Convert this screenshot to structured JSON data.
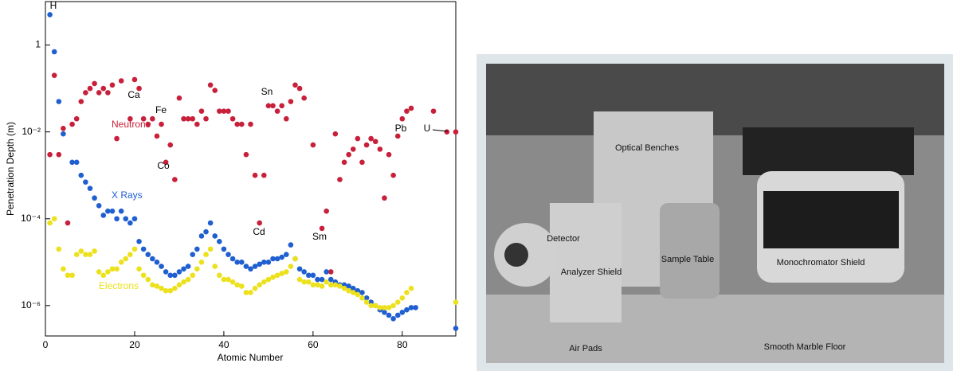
{
  "chart_data": {
    "type": "scatter",
    "ylabel": "Penetration Depth (m)",
    "xlabel": "Atomic Number",
    "log_y": true,
    "xlim": [
      0,
      92
    ],
    "xticks": [
      0,
      20,
      40,
      60,
      80
    ],
    "ylim": [
      2e-07,
      10
    ],
    "yticks": [
      {
        "value": 1e-06,
        "label": "10⁻⁶"
      },
      {
        "value": 0.0001,
        "label": "10⁻⁴"
      },
      {
        "value": 0.01,
        "label": "10⁻²"
      },
      1
    ],
    "annotations": [
      "H",
      "Ca",
      "Fe",
      "Co",
      "Sn",
      "Cd",
      "Sm",
      "Pb",
      "U"
    ],
    "series": [
      {
        "name": "Neutrons",
        "color": "#c8203a",
        "x": [
          1,
          2,
          3,
          4,
          5,
          6,
          7,
          8,
          9,
          10,
          11,
          12,
          13,
          14,
          15,
          16,
          17,
          19,
          20,
          21,
          22,
          23,
          24,
          25,
          26,
          27,
          28,
          29,
          30,
          31,
          32,
          33,
          34,
          35,
          36,
          37,
          38,
          39,
          40,
          41,
          42,
          43,
          44,
          45,
          46,
          47,
          48,
          49,
          50,
          51,
          52,
          53,
          54,
          55,
          56,
          57,
          58,
          60,
          62,
          63,
          64,
          65,
          66,
          67,
          68,
          69,
          70,
          71,
          72,
          73,
          74,
          75,
          76,
          77,
          78,
          79,
          80,
          81,
          82,
          87,
          90,
          92
        ],
        "values": [
          0.003,
          0.2,
          0.003,
          0.012,
          8e-05,
          0.015,
          0.02,
          0.05,
          0.08,
          0.1,
          0.13,
          0.08,
          0.1,
          0.08,
          0.12,
          0.007,
          0.15,
          0.02,
          0.16,
          0.1,
          0.02,
          0.015,
          0.02,
          0.008,
          0.015,
          0.002,
          0.005,
          0.0008,
          0.06,
          0.02,
          0.02,
          0.02,
          0.015,
          0.03,
          0.02,
          0.12,
          0.09,
          0.03,
          0.03,
          0.03,
          0.02,
          0.015,
          0.015,
          0.003,
          0.015,
          0.001,
          8e-05,
          0.001,
          0.04,
          0.04,
          0.03,
          0.04,
          0.02,
          0.05,
          0.12,
          0.1,
          0.06,
          0.005,
          6e-05,
          0.00015,
          6e-06,
          0.009,
          0.0008,
          0.002,
          0.003,
          0.004,
          0.007,
          0.002,
          0.005,
          0.007,
          0.006,
          0.004,
          0.0003,
          0.003,
          0.001,
          0.008,
          0.02,
          0.03,
          0.035,
          0.03,
          0.01,
          0.01
        ]
      },
      {
        "name": "X Rays",
        "color": "#1f5fd0",
        "x": [
          1,
          2,
          3,
          4,
          6,
          7,
          8,
          9,
          10,
          11,
          12,
          13,
          14,
          15,
          16,
          17,
          18,
          19,
          20,
          21,
          22,
          23,
          24,
          25,
          26,
          27,
          28,
          29,
          30,
          31,
          32,
          33,
          34,
          35,
          36,
          37,
          38,
          39,
          40,
          41,
          42,
          43,
          44,
          45,
          46,
          47,
          48,
          49,
          50,
          51,
          52,
          53,
          54,
          55,
          56,
          57,
          58,
          59,
          60,
          61,
          62,
          63,
          64,
          65,
          66,
          67,
          68,
          69,
          70,
          71,
          72,
          73,
          74,
          75,
          76,
          77,
          78,
          79,
          80,
          81,
          82,
          83,
          92
        ],
        "values": [
          5,
          0.7,
          0.05,
          0.009,
          0.002,
          0.002,
          0.001,
          0.0007,
          0.0005,
          0.0003,
          0.0002,
          0.00012,
          0.00015,
          0.00015,
          0.0001,
          0.00015,
          0.0001,
          8e-05,
          0.0001,
          3e-05,
          2e-05,
          1.5e-05,
          1.2e-05,
          1e-05,
          8e-06,
          6e-06,
          5e-06,
          5e-06,
          6e-06,
          7e-06,
          8e-06,
          1.5e-05,
          2e-05,
          4e-05,
          5e-05,
          8e-05,
          4e-05,
          3e-05,
          2e-05,
          1.5e-05,
          1.2e-05,
          1e-05,
          1e-05,
          8e-06,
          7e-06,
          8e-06,
          9e-06,
          1e-05,
          1e-05,
          1.2e-05,
          1.2e-05,
          1.3e-05,
          1.5e-05,
          2.5e-05,
          1.2e-05,
          7e-06,
          6e-06,
          5e-06,
          5e-06,
          4e-06,
          4e-06,
          6e-06,
          4e-06,
          3.5e-06,
          3e-06,
          3e-06,
          2.8e-06,
          2.5e-06,
          2.2e-06,
          2e-06,
          1.5e-06,
          1.2e-06,
          1e-06,
          8e-07,
          7e-07,
          6e-07,
          5e-07,
          6e-07,
          7e-07,
          8e-07,
          9e-07,
          9e-07,
          3e-07
        ]
      },
      {
        "name": "Electrons",
        "color": "#ece11c",
        "x": [
          1,
          2,
          3,
          4,
          5,
          6,
          7,
          8,
          9,
          10,
          11,
          12,
          13,
          14,
          15,
          16,
          17,
          18,
          19,
          20,
          21,
          22,
          23,
          24,
          25,
          26,
          27,
          28,
          29,
          30,
          31,
          32,
          33,
          34,
          35,
          36,
          37,
          38,
          39,
          40,
          41,
          42,
          43,
          44,
          45,
          46,
          47,
          48,
          49,
          50,
          51,
          52,
          53,
          54,
          55,
          56,
          57,
          58,
          59,
          60,
          61,
          62,
          63,
          64,
          65,
          66,
          67,
          68,
          69,
          70,
          71,
          72,
          73,
          74,
          75,
          76,
          77,
          78,
          79,
          80,
          81,
          82,
          92
        ],
        "values": [
          8e-05,
          0.0001,
          2e-05,
          7e-06,
          5e-06,
          5e-06,
          1.5e-05,
          1.8e-05,
          1.5e-05,
          1.5e-05,
          1.8e-05,
          6e-06,
          5e-06,
          6e-06,
          7e-06,
          7e-06,
          1e-05,
          1.2e-05,
          1.5e-05,
          2e-05,
          7e-06,
          5e-06,
          4e-06,
          3e-06,
          2.8e-06,
          2.5e-06,
          2.2e-06,
          2.2e-06,
          2.5e-06,
          3e-06,
          3.5e-06,
          4e-06,
          5e-06,
          7e-06,
          1e-05,
          1.5e-05,
          2e-05,
          8e-06,
          5e-06,
          4e-06,
          4e-06,
          3.5e-06,
          3e-06,
          2.8e-06,
          2e-06,
          2e-06,
          2.5e-06,
          3e-06,
          3.5e-06,
          4e-06,
          4.5e-06,
          5e-06,
          5.5e-06,
          6e-06,
          8e-06,
          1.2e-05,
          4e-06,
          3.5e-06,
          3.5e-06,
          3e-06,
          3e-06,
          2.8e-06,
          3.5e-06,
          3e-06,
          3e-06,
          2.8e-06,
          2.5e-06,
          2.2e-06,
          2e-06,
          1.8e-06,
          1.5e-06,
          1.2e-06,
          1e-06,
          1e-06,
          9e-07,
          9e-07,
          9e-07,
          1e-06,
          1.2e-06,
          1.5e-06,
          2e-06,
          2.5e-06,
          1.2e-06
        ]
      }
    ]
  },
  "photo": {
    "labels": [
      "Optical Benches",
      "Detector",
      "Analyzer Shield",
      "Sample Table",
      "Monochromator Shield",
      "Air Pads",
      "Smooth Marble Floor"
    ]
  }
}
